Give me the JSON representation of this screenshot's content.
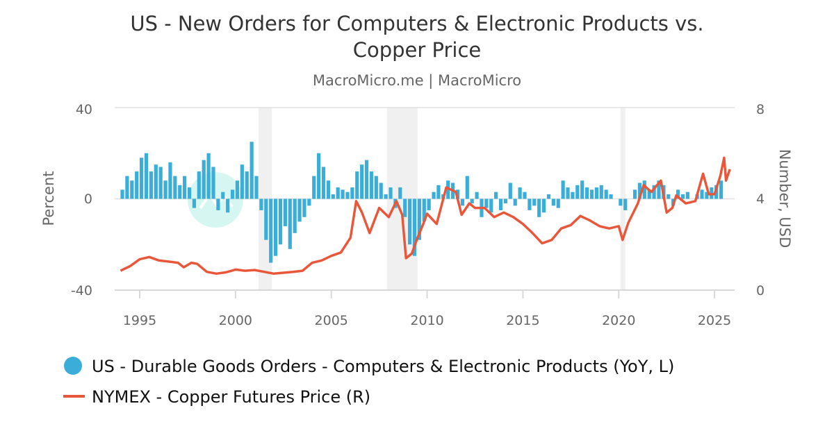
{
  "chart_data": {
    "type": "bar+line",
    "title_lines": [
      "US - New Orders for Computers & Electronic Products vs.",
      "Copper Price"
    ],
    "subtitle": "MacroMicro.me | MacroMicro",
    "watermark": "MacroMicro",
    "x_ticks": [
      "1995",
      "2000",
      "2005",
      "2010",
      "2015",
      "2020",
      "2025"
    ],
    "xlim": [
      1994,
      2026
    ],
    "left_axis": {
      "label": "Percent",
      "ylim": [
        -40,
        40
      ],
      "ticks": [
        "-40",
        "0",
        "40"
      ]
    },
    "right_axis": {
      "label": "Number, USD",
      "ylim": [
        0,
        8
      ],
      "ticks": [
        "0",
        "4",
        "8"
      ]
    },
    "grid": "horizontal",
    "legend_position": "bottom-left",
    "recession_shading": [
      [
        2001.2,
        2001.9
      ],
      [
        2007.9,
        2009.5
      ],
      [
        2020.1,
        2020.35
      ]
    ],
    "series": [
      {
        "name": "US - Durable Goods Orders - Computers & Electronic Products (YoY, L)",
        "type": "bar",
        "axis": "left",
        "color": "#3aaed8",
        "frequency": "quarterly",
        "start": 1994.0,
        "values": [
          4,
          10,
          8,
          12,
          18,
          20,
          12,
          15,
          14,
          8,
          16,
          10,
          6,
          10,
          5,
          -4,
          12,
          17,
          20,
          14,
          -5,
          3,
          -6,
          4,
          8,
          15,
          12,
          25,
          10,
          -5,
          -18,
          -28,
          -25,
          -20,
          -12,
          -22,
          -15,
          -10,
          -8,
          -3,
          10,
          20,
          14,
          8,
          2,
          5,
          4,
          3,
          5,
          12,
          15,
          17,
          12,
          10,
          7,
          2,
          5,
          -4,
          5,
          -8,
          -20,
          -25,
          -18,
          -10,
          -5,
          3,
          6,
          2,
          8,
          7,
          4,
          -3,
          10,
          -2,
          3,
          -8,
          -4,
          -6,
          3,
          -5,
          -2,
          7,
          -3,
          5,
          3,
          -5,
          -3,
          -8,
          -6,
          2,
          -3,
          -4,
          8,
          5,
          3,
          6,
          8,
          5,
          4,
          5,
          6,
          4,
          2,
          0,
          -3,
          -5,
          0,
          4,
          7,
          8,
          4,
          6,
          8,
          6,
          2,
          -3,
          4,
          2,
          3,
          0,
          2,
          4,
          3,
          5,
          6,
          8
        ]
      },
      {
        "name": "NYMEX - Copper Futures Price (R)",
        "type": "line",
        "axis": "right",
        "color": "#e8573a",
        "points": [
          [
            1994.0,
            0.85
          ],
          [
            1994.5,
            1.05
          ],
          [
            1995.0,
            1.35
          ],
          [
            1995.5,
            1.45
          ],
          [
            1996.0,
            1.3
          ],
          [
            1996.5,
            1.25
          ],
          [
            1997.0,
            1.2
          ],
          [
            1997.3,
            1.0
          ],
          [
            1997.7,
            1.2
          ],
          [
            1998.0,
            1.15
          ],
          [
            1998.5,
            0.8
          ],
          [
            1999.0,
            0.72
          ],
          [
            1999.5,
            0.78
          ],
          [
            2000.0,
            0.9
          ],
          [
            2000.5,
            0.85
          ],
          [
            2001.0,
            0.88
          ],
          [
            2001.5,
            0.8
          ],
          [
            2002.0,
            0.72
          ],
          [
            2002.5,
            0.76
          ],
          [
            2003.0,
            0.8
          ],
          [
            2003.5,
            0.85
          ],
          [
            2004.0,
            1.2
          ],
          [
            2004.5,
            1.3
          ],
          [
            2005.0,
            1.5
          ],
          [
            2005.5,
            1.65
          ],
          [
            2006.0,
            2.3
          ],
          [
            2006.3,
            3.9
          ],
          [
            2006.6,
            3.4
          ],
          [
            2007.0,
            2.5
          ],
          [
            2007.5,
            3.6
          ],
          [
            2008.0,
            3.2
          ],
          [
            2008.4,
            3.9
          ],
          [
            2008.7,
            3.3
          ],
          [
            2008.9,
            1.4
          ],
          [
            2009.2,
            1.6
          ],
          [
            2009.5,
            2.3
          ],
          [
            2009.8,
            2.9
          ],
          [
            2010.0,
            3.35
          ],
          [
            2010.5,
            2.9
          ],
          [
            2011.0,
            4.5
          ],
          [
            2011.5,
            4.3
          ],
          [
            2011.8,
            3.3
          ],
          [
            2012.2,
            3.8
          ],
          [
            2012.5,
            3.6
          ],
          [
            2013.0,
            3.6
          ],
          [
            2013.5,
            3.2
          ],
          [
            2014.0,
            3.4
          ],
          [
            2014.5,
            3.2
          ],
          [
            2015.0,
            2.9
          ],
          [
            2015.5,
            2.5
          ],
          [
            2016.0,
            2.05
          ],
          [
            2016.5,
            2.2
          ],
          [
            2017.0,
            2.7
          ],
          [
            2017.5,
            2.85
          ],
          [
            2018.0,
            3.25
          ],
          [
            2018.5,
            3.05
          ],
          [
            2019.0,
            2.8
          ],
          [
            2019.5,
            2.7
          ],
          [
            2020.0,
            2.8
          ],
          [
            2020.2,
            2.2
          ],
          [
            2020.5,
            2.95
          ],
          [
            2021.0,
            3.8
          ],
          [
            2021.3,
            4.6
          ],
          [
            2021.7,
            4.3
          ],
          [
            2022.2,
            4.8
          ],
          [
            2022.5,
            3.4
          ],
          [
            2022.8,
            3.6
          ],
          [
            2023.0,
            4.15
          ],
          [
            2023.5,
            3.8
          ],
          [
            2024.0,
            3.9
          ],
          [
            2024.4,
            5.1
          ],
          [
            2024.7,
            4.2
          ],
          [
            2025.0,
            4.2
          ],
          [
            2025.3,
            5.0
          ],
          [
            2025.5,
            5.8
          ],
          [
            2025.6,
            4.8
          ],
          [
            2025.8,
            5.3
          ]
        ]
      }
    ]
  }
}
